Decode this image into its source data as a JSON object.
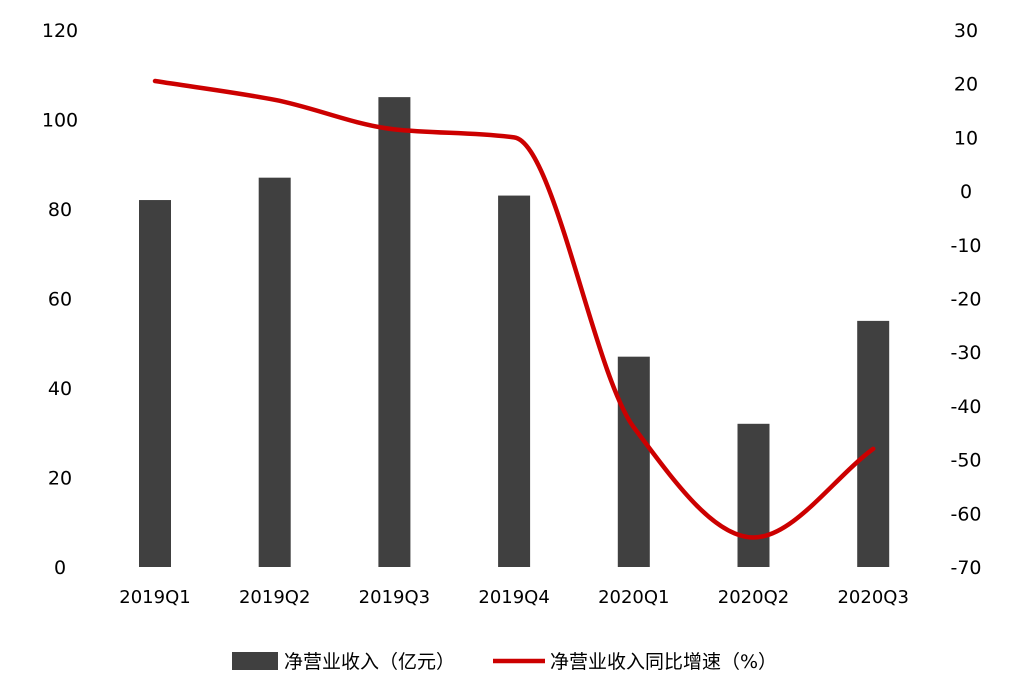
{
  "chart_data": {
    "type": "bar",
    "categories": [
      "2019Q1",
      "2019Q2",
      "2019Q3",
      "2019Q4",
      "2020Q1",
      "2020Q2",
      "2020Q3"
    ],
    "series": [
      {
        "name": "净营业收入（亿元）",
        "type": "bar",
        "axis": "left",
        "color": "#404040",
        "values": [
          82,
          87,
          105,
          83,
          47,
          32,
          55
        ]
      },
      {
        "name": "净营业收入同比增速（%）",
        "type": "line",
        "axis": "right",
        "color": "#cc0000",
        "smooth": true,
        "values": [
          20.5,
          17,
          11.5,
          10,
          -44,
          -64.5,
          -48
        ]
      }
    ],
    "y_left": {
      "min": 0,
      "max": 120,
      "ticks": [
        "0",
        "20",
        "40",
        "60",
        "80",
        "100",
        "120"
      ]
    },
    "y_right": {
      "min": -70,
      "max": 30,
      "ticks": [
        "-70",
        "-60",
        "-50",
        "-40",
        "-30",
        "-20",
        "-10",
        "0",
        "10",
        "20",
        "30"
      ]
    },
    "legend": "bottom",
    "grid": false
  }
}
